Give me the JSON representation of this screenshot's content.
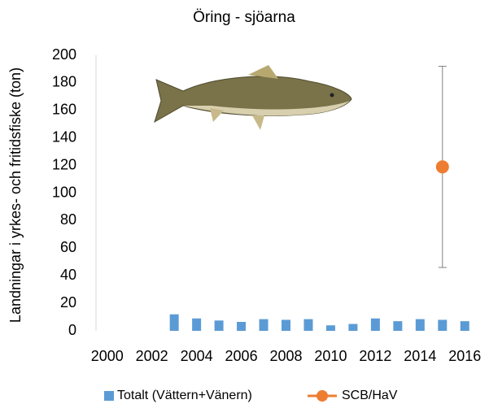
{
  "chart_data": {
    "type": "bar",
    "title": "Öring - sjöarna",
    "y_label": "Landningar i yrkes- och fritidsfiske (ton)",
    "categories": [
      "2000",
      null,
      "2002",
      null,
      "2004",
      null,
      "2006",
      null,
      "2008",
      null,
      "2010",
      null,
      "2012",
      null,
      "2014",
      null,
      "2016"
    ],
    "series": [
      {
        "name": "Totalt (Vättern+Vänern)",
        "type": "bar",
        "color": "#5b9bd5",
        "values": [
          null,
          null,
          null,
          12,
          9,
          7.5,
          6.5,
          8.5,
          8,
          8.5,
          4,
          5,
          9,
          7,
          8.5,
          8,
          7
        ]
      },
      {
        "name": "SCB/HaV",
        "type": "scatter",
        "color": "#ed7d31",
        "values": [
          null,
          null,
          null,
          null,
          null,
          null,
          null,
          null,
          null,
          null,
          null,
          null,
          null,
          null,
          null,
          119,
          null
        ],
        "errors": [
          null,
          null,
          null,
          null,
          null,
          null,
          null,
          null,
          null,
          null,
          null,
          null,
          null,
          null,
          null,
          73,
          null
        ]
      }
    ],
    "ylim": [
      0,
      200
    ],
    "yticks": [
      0,
      20,
      40,
      60,
      80,
      100,
      120,
      140,
      160,
      180,
      200
    ],
    "grid": false,
    "legend": "bottom"
  }
}
